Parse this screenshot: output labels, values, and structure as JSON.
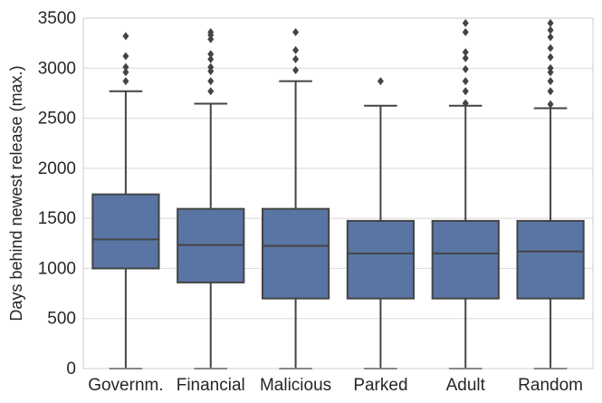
{
  "chart_data": {
    "type": "box",
    "title": "",
    "xlabel": "",
    "ylabel": "Days behind newest release (max.)",
    "ylim": [
      0,
      3500
    ],
    "yticks": [
      0,
      500,
      1000,
      1500,
      2000,
      2500,
      3000,
      3500
    ],
    "grid": "horizontal",
    "box_color": "#5975a4",
    "line_color": "#444444",
    "categories": [
      "Governm.",
      "Financial",
      "Malicious",
      "Parked",
      "Adult",
      "Random"
    ],
    "boxes": [
      {
        "category": "Governm.",
        "whisker_low": 0,
        "q1": 1000,
        "median": 1290,
        "q3": 1740,
        "whisker_high": 2770,
        "outliers": [
          2870,
          2960,
          3010,
          3120,
          3320
        ]
      },
      {
        "category": "Financial",
        "whisker_low": 0,
        "q1": 860,
        "median": 1235,
        "q3": 1595,
        "whisker_high": 2645,
        "outliers": [
          2770,
          2870,
          2970,
          3010,
          3090,
          3140,
          3290,
          3330,
          3360
        ]
      },
      {
        "category": "Malicious",
        "whisker_low": 0,
        "q1": 700,
        "median": 1225,
        "q3": 1595,
        "whisker_high": 2870,
        "outliers": [
          2980,
          3090,
          3180,
          3360
        ]
      },
      {
        "category": "Parked",
        "whisker_low": 0,
        "q1": 700,
        "median": 1150,
        "q3": 1475,
        "whisker_high": 2625,
        "outliers": [
          2870
        ]
      },
      {
        "category": "Adult",
        "whisker_low": 0,
        "q1": 700,
        "median": 1150,
        "q3": 1475,
        "whisker_high": 2625,
        "outliers": [
          2650,
          2770,
          2870,
          2990,
          3100,
          3160,
          3360,
          3450
        ]
      },
      {
        "category": "Random",
        "whisker_low": 0,
        "q1": 700,
        "median": 1170,
        "q3": 1475,
        "whisker_high": 2600,
        "outliers": [
          2640,
          2770,
          2870,
          2960,
          3000,
          3110,
          3200,
          3310,
          3380,
          3450
        ]
      }
    ]
  }
}
